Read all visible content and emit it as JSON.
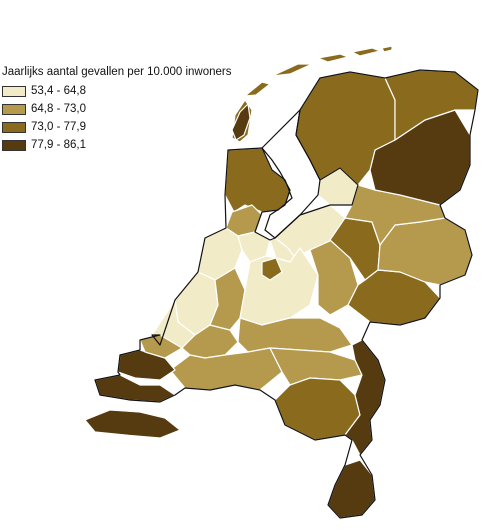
{
  "legend": {
    "title": "Jaarlijks aantal gevallen per 10.000 inwoners",
    "classes": [
      {
        "label": "53,4 - 64,8",
        "color": "#f2ebc8"
      },
      {
        "label": "64,8 - 73,0",
        "color": "#b59a4e"
      },
      {
        "label": "73,0 - 77,9",
        "color": "#8a6a1c"
      },
      {
        "label": "77,9 - 86,1",
        "color": "#563a10"
      }
    ]
  },
  "colors": {
    "outline": "#111111",
    "border": "#ffffff",
    "water": "#ffffff"
  }
}
